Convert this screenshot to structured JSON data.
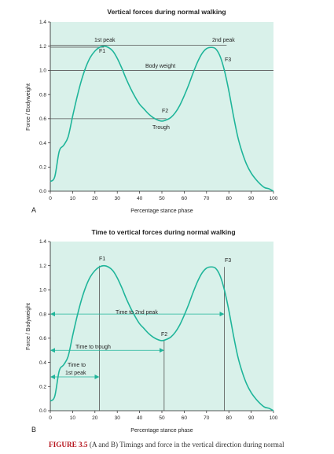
{
  "colors": {
    "plot_bg": "#d9f1ea",
    "curve": "#1fb59a",
    "arrow": "#1fb59a",
    "ref_line": "#555555"
  },
  "chart_data": [
    {
      "type": "line",
      "panel": "A",
      "title": "Vertical forces during normal walking",
      "xlabel": "Percentage stance phase",
      "ylabel": "Force / Bodyweight",
      "xlim": [
        0,
        100
      ],
      "ylim": [
        0,
        1.4
      ],
      "xticks": [
        "0",
        "10",
        "20",
        "30",
        "40",
        "50",
        "60",
        "70",
        "80",
        "90",
        "100"
      ],
      "yticks": [
        "0.0",
        "0.2",
        "0.4",
        "0.6",
        "0.8",
        "1.0",
        "1.2",
        "1.4"
      ],
      "grid": false,
      "x": [
        0,
        2,
        4,
        6,
        8,
        10,
        12,
        14,
        16,
        18,
        20,
        22,
        24,
        26,
        28,
        30,
        32,
        34,
        36,
        38,
        40,
        42,
        44,
        46,
        48,
        50,
        52,
        54,
        56,
        58,
        60,
        62,
        64,
        66,
        68,
        70,
        72,
        74,
        76,
        78,
        80,
        82,
        84,
        86,
        88,
        90,
        92,
        94,
        96,
        98,
        100
      ],
      "y": [
        0.08,
        0.12,
        0.33,
        0.38,
        0.45,
        0.62,
        0.78,
        0.92,
        1.03,
        1.11,
        1.16,
        1.19,
        1.2,
        1.19,
        1.16,
        1.1,
        1.02,
        0.93,
        0.85,
        0.78,
        0.72,
        0.68,
        0.64,
        0.61,
        0.59,
        0.58,
        0.59,
        0.61,
        0.65,
        0.71,
        0.79,
        0.88,
        0.98,
        1.07,
        1.14,
        1.18,
        1.19,
        1.18,
        1.12,
        1.0,
        0.83,
        0.63,
        0.45,
        0.32,
        0.22,
        0.15,
        0.1,
        0.06,
        0.03,
        0.02,
        0.0
      ],
      "reference_lines": [
        {
          "y": 1.0,
          "label": "Body weight"
        },
        {
          "y": 1.2,
          "label": "1st peak"
        },
        {
          "y": 1.2,
          "label": "2nd peak"
        },
        {
          "y": 0.6,
          "label": "Trough"
        }
      ],
      "annotations": [
        "F1",
        "F2",
        "F3"
      ]
    },
    {
      "type": "line",
      "panel": "B",
      "title": "Time to vertical forces during normal walking",
      "xlabel": "Percentage stance phase",
      "ylabel": "Force / Bodyweight",
      "xlim": [
        0,
        100
      ],
      "ylim": [
        0,
        1.4
      ],
      "xticks": [
        "0",
        "10",
        "20",
        "30",
        "40",
        "50",
        "60",
        "70",
        "80",
        "90",
        "100"
      ],
      "yticks": [
        "0.0",
        "0.2",
        "0.4",
        "0.6",
        "0.8",
        "1.0",
        "1.2",
        "1.4"
      ],
      "grid": false,
      "x": [
        0,
        2,
        4,
        6,
        8,
        10,
        12,
        14,
        16,
        18,
        20,
        22,
        24,
        26,
        28,
        30,
        32,
        34,
        36,
        38,
        40,
        42,
        44,
        46,
        48,
        50,
        52,
        54,
        56,
        58,
        60,
        62,
        64,
        66,
        68,
        70,
        72,
        74,
        76,
        78,
        80,
        82,
        84,
        86,
        88,
        90,
        92,
        94,
        96,
        98,
        100
      ],
      "y": [
        0.08,
        0.12,
        0.33,
        0.38,
        0.45,
        0.62,
        0.78,
        0.92,
        1.03,
        1.11,
        1.16,
        1.19,
        1.2,
        1.19,
        1.16,
        1.1,
        1.02,
        0.93,
        0.85,
        0.78,
        0.72,
        0.68,
        0.64,
        0.61,
        0.59,
        0.58,
        0.59,
        0.61,
        0.65,
        0.71,
        0.79,
        0.88,
        0.98,
        1.07,
        1.14,
        1.18,
        1.19,
        1.18,
        1.12,
        1.0,
        0.83,
        0.63,
        0.45,
        0.32,
        0.22,
        0.15,
        0.1,
        0.06,
        0.03,
        0.02,
        0.0
      ],
      "timings": [
        {
          "label": "Time to 1st peak",
          "x_end": 22,
          "y": 0.28
        },
        {
          "label": "Time to trough",
          "x_end": 51,
          "y": 0.5
        },
        {
          "label": "Time to 2nd peak",
          "x_end": 78,
          "y": 0.8
        }
      ],
      "annotations": [
        "F1",
        "F2",
        "F3"
      ]
    }
  ],
  "labels": {
    "panel_a": "A",
    "panel_b": "B",
    "text_1st_peak": "1st peak",
    "text_2nd_peak": "2nd peak",
    "text_body_weight": "Body weight",
    "text_trough": "Trough",
    "text_f1": "F1",
    "text_f2": "F2",
    "text_f3": "F3",
    "time_1st_peak_line1": "Time to",
    "time_1st_peak_line2": "1st peak",
    "time_trough": "Time to trough",
    "time_2nd_peak": "Time to 2nd peak"
  },
  "caption": {
    "figure": "FIGURE 3.5",
    "text": " (A and B) Timings and force in the vertical direction during normal"
  }
}
